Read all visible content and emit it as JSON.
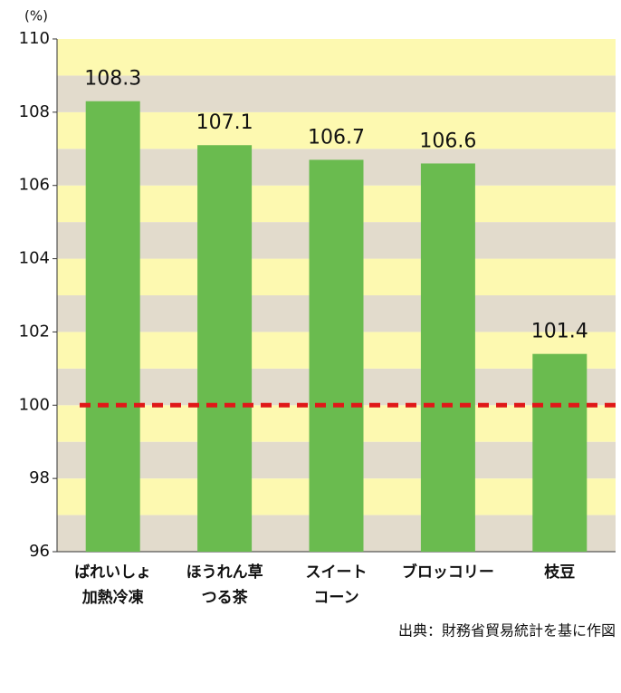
{
  "chart_data": {
    "type": "bar",
    "y_label": "(%)",
    "categories": [
      [
        "ばれいしょ",
        "加熱冷凍"
      ],
      [
        "ほうれん草",
        "つる茶"
      ],
      [
        "スイート",
        "コーン"
      ],
      [
        "ブロッコリー"
      ],
      [
        "枝豆"
      ]
    ],
    "values": [
      108.3,
      107.1,
      106.7,
      106.6,
      101.4
    ],
    "color": "#6abb4f",
    "ylim": [
      96,
      110
    ],
    "yticks": [
      96,
      98,
      100,
      102,
      104,
      106,
      108,
      110
    ],
    "band_colors": [
      "#e2dbcc",
      "#fdf9b0"
    ],
    "reference_line": {
      "value": 100,
      "color": "#e01818"
    },
    "source": "出典：財務省貿易統計を基に作図"
  }
}
